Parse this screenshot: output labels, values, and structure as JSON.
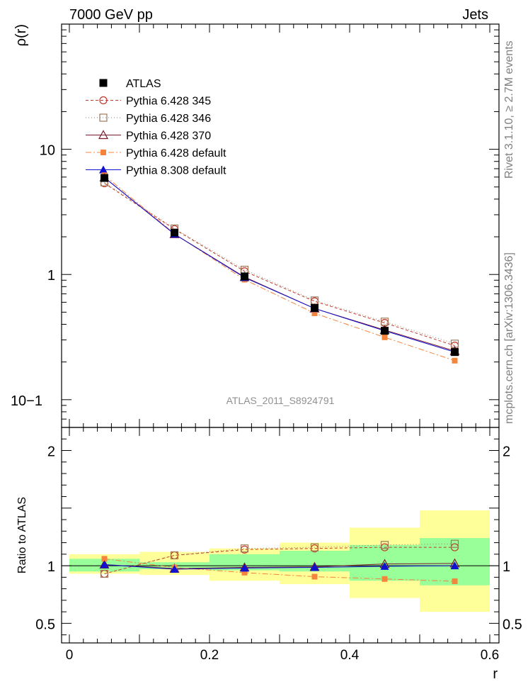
{
  "header": {
    "left": "7000 GeV pp",
    "right": "Jets"
  },
  "side_labels": {
    "rivet": "Rivet 3.1.10, ≥ 2.7M events",
    "mcplots": "mcplots.cern.ch [arXiv:1306.3436]"
  },
  "watermark": "ATLAS_2011_S8924791",
  "chart_data": [
    {
      "type": "line",
      "yscale": "log",
      "ylabel": "ρ(r)",
      "xlabel": "r",
      "xlim": [
        0,
        0.6
      ],
      "ylim": [
        0.06,
        100
      ],
      "x_ticks": [
        "0",
        "0.2",
        "0.4",
        "0.6"
      ],
      "y_ticks": [
        {
          "value": 10,
          "label": "10"
        },
        {
          "value": 1,
          "label": "1"
        },
        {
          "value": 0.1,
          "label": "10−1"
        }
      ],
      "x": [
        0.05,
        0.15,
        0.25,
        0.35,
        0.45,
        0.55
      ],
      "data": {
        "name": "ATLAS",
        "values": [
          5.9,
          2.16,
          0.965,
          0.54,
          0.355,
          0.24
        ]
      },
      "series": [
        {
          "name": "Pythia 6.428 345",
          "color": "#c0392b",
          "dash": "4,3",
          "marker": "open-circle",
          "values": [
            5.35,
            2.3,
            1.06,
            0.61,
            0.41,
            0.27
          ]
        },
        {
          "name": "Pythia 6.428 346",
          "color": "#a0785a",
          "dash": "1,3",
          "marker": "open-square",
          "values": [
            5.45,
            2.33,
            1.09,
            0.62,
            0.42,
            0.28
          ]
        },
        {
          "name": "Pythia 6.428 370",
          "color": "#7a1a2a",
          "dash": "",
          "marker": "open-triangle",
          "values": [
            5.95,
            2.1,
            0.955,
            0.535,
            0.36,
            0.245
          ]
        },
        {
          "name": "Pythia 6.428 default",
          "color": "#f5843c",
          "dash": "8,3,2,3",
          "marker": "filled-square",
          "values": [
            6.2,
            2.12,
            0.91,
            0.49,
            0.315,
            0.205
          ]
        },
        {
          "name": "Pythia 8.308 default",
          "color": "#1010d0",
          "dash": "",
          "marker": "filled-triangle",
          "values": [
            5.95,
            2.1,
            0.945,
            0.535,
            0.355,
            0.24
          ]
        }
      ]
    },
    {
      "type": "line",
      "ylabel": "Ratio to ATLAS",
      "xlabel": "r",
      "xlim": [
        0,
        0.6
      ],
      "ylim": [
        0.33,
        2.2
      ],
      "x_ticks": [
        "0",
        "0.2",
        "0.4",
        "0.6"
      ],
      "y_ticks": [
        {
          "value": 0.5,
          "label": "0.5"
        },
        {
          "value": 1,
          "label": "1"
        },
        {
          "value": 1.5,
          "label": ""
        },
        {
          "value": 2,
          "label": "2"
        }
      ],
      "bands": {
        "edges": [
          0,
          0.1,
          0.2,
          0.3,
          0.4,
          0.5,
          0.6
        ],
        "stat": [
          [
            0.95,
            1.06
          ],
          [
            0.97,
            1.03
          ],
          [
            0.96,
            1.1
          ],
          [
            0.95,
            1.13
          ],
          [
            0.87,
            1.18
          ],
          [
            0.83,
            1.24
          ]
        ],
        "total": [
          [
            0.93,
            1.1
          ],
          [
            0.92,
            1.12
          ],
          [
            0.87,
            1.15
          ],
          [
            0.84,
            1.2
          ],
          [
            0.72,
            1.33
          ],
          [
            0.6,
            1.48
          ]
        ]
      },
      "x": [
        0.05,
        0.15,
        0.25,
        0.35,
        0.45,
        0.55
      ],
      "series": [
        {
          "name": "Pythia 6.428 345",
          "values": [
            0.93,
            1.09,
            1.14,
            1.15,
            1.16,
            1.16
          ]
        },
        {
          "name": "Pythia 6.428 346",
          "values": [
            0.93,
            1.09,
            1.15,
            1.16,
            1.18,
            1.19
          ]
        },
        {
          "name": "Pythia 6.428 370",
          "values": [
            1.01,
            0.975,
            0.985,
            0.99,
            1.015,
            1.02
          ]
        },
        {
          "name": "Pythia 6.428 default",
          "values": [
            1.06,
            0.985,
            0.94,
            0.905,
            0.885,
            0.865
          ]
        },
        {
          "name": "Pythia 8.308 default",
          "values": [
            1.01,
            0.97,
            0.98,
            0.985,
            0.995,
            1.0
          ]
        }
      ]
    }
  ]
}
